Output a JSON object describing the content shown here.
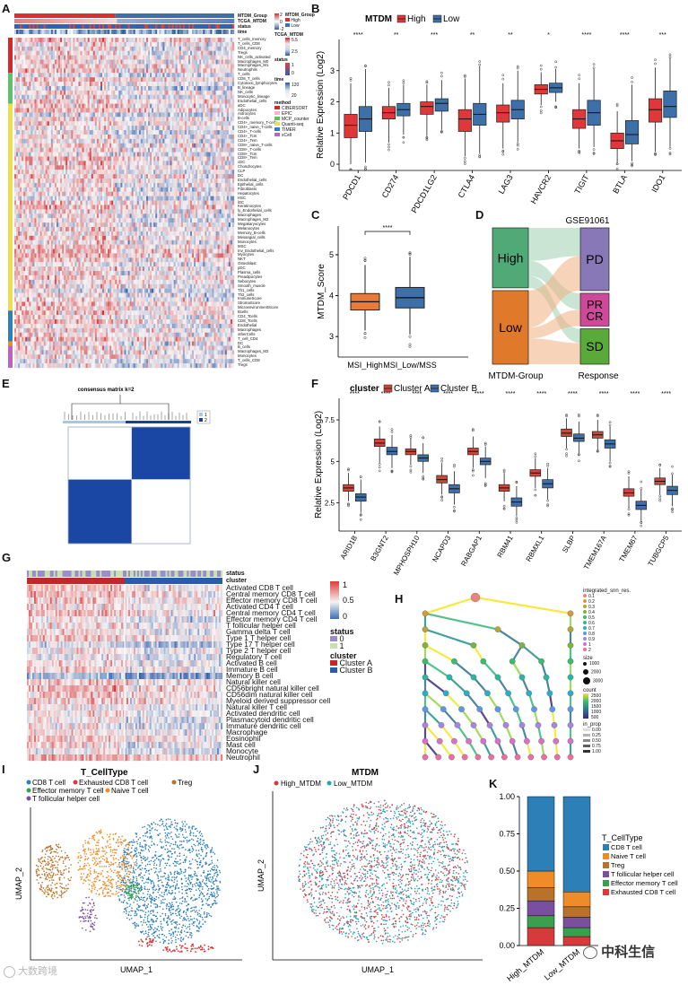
{
  "panels": {
    "a": "A",
    "b": "B",
    "c": "C",
    "d": "D",
    "e": "E",
    "f": "F",
    "g": "G",
    "h": "H",
    "i": "I",
    "j": "J",
    "k": "K"
  },
  "panelA": {
    "header_rows": [
      "MTDM_Group",
      "TCGA_MTDM",
      "status",
      "time"
    ],
    "cell_labels": [
      "T_cells_memory",
      "T_cells_CD8",
      "CD4_memory",
      "Tregs",
      "NK_cells_activated",
      "Macrophages_M0",
      "Macrophages_M1",
      "Neutrophils",
      "T_cells",
      "CD8_T_cells",
      "Cytotoxic_lymphocytes",
      "B_lineage",
      "NK_cells",
      "Monocytic_lineage",
      "Endothelial_cells",
      "aDC",
      "Adipocytes",
      "Astrocytes",
      "B-cells",
      "CD4+_memory_T-cells",
      "CD4+_naive_T-cells",
      "CD4+_T-cells",
      "CD4+_Tcm",
      "CD4+_Tem",
      "CD8+_naive_T-cells",
      "CD8+_T-cells",
      "CD8+_Tcm",
      "CD8+_Tem",
      "cDC",
      "Chondrocytes",
      "CLP",
      "DC",
      "Endothelial_cells",
      "Epithelial_cells",
      "Fibroblasts",
      "Hepatocytes",
      "HSC",
      "iDC",
      "Keratinocytes",
      "ly_Endothelial_cells",
      "Macrophages",
      "Macrophages_M2",
      "Megakaryocytes",
      "Melanocytes",
      "Memory_B-cells",
      "Mesangial_cells",
      "Monocytes",
      "MSC",
      "mv_Endothelial_cells",
      "Myocytes",
      "NKT",
      "Osteoblast",
      "pDC",
      "Plasma_cells",
      "Preadipocytes",
      "Sebocytes",
      "Smooth_muscle",
      "Th1_cells",
      "Th2_cells",
      "ImmuneScore",
      "StromaScore",
      "MicroenvironmentScore",
      "Bcells",
      "CD4_Tcells",
      "CD8_Tcells",
      "Endothelial",
      "Macrophages",
      "otherCells",
      "T_cell_CD4",
      "DC",
      "B_cells",
      "Macrophages_M2",
      "Monocytes",
      "T_cells_CD8",
      "Tregs"
    ],
    "legend": {
      "mtdm_group_title": "MTDM_Group",
      "high": "High",
      "low": "Low",
      "tcga_title": "TCGA_MTDM",
      "tcga_ticks": [
        "5.5",
        "2.5"
      ],
      "status_title": "status",
      "status_ticks": [
        "1",
        "0"
      ],
      "time_title": "time",
      "time_ticks": [
        "120",
        "20"
      ],
      "method_title": "method",
      "methods": [
        "CIBERSORT",
        "EPIC",
        "MCP_counter",
        "Quanti-seq",
        "TIMER",
        "xCell"
      ],
      "scale_ticks": [
        "2",
        "0",
        "-2"
      ]
    },
    "method_colors": [
      "#d9262a",
      "#f7b6c8",
      "#5fbf6a",
      "#e8e050",
      "#2f7fb8",
      "#c060c0"
    ]
  },
  "chart_data": [
    {
      "id": "B",
      "type": "box",
      "title": "MTDM",
      "legend": [
        "High",
        "Low"
      ],
      "colors": [
        "#e0383a",
        "#3d6fa8"
      ],
      "categories": [
        "PDCD1",
        "CD274",
        "PDCD1LG2",
        "CTLA4",
        "LAG3",
        "HAVCR2",
        "TIGIT",
        "BTLA",
        "IDO1"
      ],
      "significance": [
        "****",
        "**",
        "***",
        "**",
        "**",
        "*",
        "****",
        "****",
        "***"
      ],
      "ylabel": "Relative Expression (Log2)",
      "ylim": [
        -0.2,
        4.0
      ],
      "yticks": [
        0,
        1,
        2,
        3
      ],
      "series": [
        {
          "name": "High",
          "q1": [
            0.85,
            1.45,
            1.6,
            1.05,
            1.35,
            2.25,
            1.15,
            0.5,
            1.35
          ],
          "median": [
            1.25,
            1.65,
            1.85,
            1.45,
            1.65,
            2.4,
            1.45,
            0.75,
            1.75
          ],
          "q3": [
            1.6,
            1.85,
            2.0,
            1.75,
            1.9,
            2.55,
            1.75,
            1.0,
            2.1
          ],
          "wlo": [
            0.0,
            0.7,
            0.9,
            0.25,
            0.5,
            1.9,
            0.5,
            0.05,
            0.4
          ],
          "whi": [
            2.6,
            2.45,
            2.55,
            2.75,
            2.6,
            2.95,
            2.6,
            1.7,
            3.1
          ]
        },
        {
          "name": "Low",
          "q1": [
            1.05,
            1.55,
            1.7,
            1.25,
            1.45,
            2.3,
            1.25,
            0.65,
            1.5
          ],
          "median": [
            1.45,
            1.75,
            1.95,
            1.6,
            1.75,
            2.45,
            1.65,
            0.95,
            1.85
          ],
          "q3": [
            1.85,
            1.95,
            2.1,
            1.95,
            2.05,
            2.6,
            2.05,
            1.4,
            2.35
          ],
          "wlo": [
            0.05,
            0.95,
            1.1,
            0.35,
            0.7,
            2.0,
            0.55,
            0.1,
            0.55
          ],
          "whi": [
            3.05,
            2.55,
            2.7,
            3.15,
            3.0,
            3.05,
            3.05,
            2.55,
            3.4
          ]
        }
      ]
    },
    {
      "id": "C",
      "type": "box",
      "categories": [
        "MSI_High",
        "MSI_Low/MSS"
      ],
      "colors": [
        "#e87a3a",
        "#3d6fa8"
      ],
      "significance": "****",
      "ylabel": "MTDM_Score",
      "ylim": [
        2.5,
        5.7
      ],
      "yticks": [
        3,
        4,
        5
      ],
      "q1": [
        3.65,
        3.7
      ],
      "median": [
        3.85,
        3.95
      ],
      "q3": [
        4.05,
        4.2
      ],
      "wlo": [
        3.15,
        3.05
      ],
      "whi": [
        4.75,
        4.95
      ]
    },
    {
      "id": "F",
      "type": "box",
      "title": "cluster",
      "legend": [
        "Cluster A",
        "Cluster B"
      ],
      "colors": [
        "#d0453a",
        "#3d6fa8"
      ],
      "categories": [
        "ARID1B",
        "B3GNT2",
        "MPHOSPH10",
        "NCAPD3",
        "RABGAP1",
        "RBM41",
        "RBMXL1",
        "SLBP",
        "TMEM167A",
        "TMEM67",
        "TUBGCP5"
      ],
      "significance": [
        "****",
        "****",
        "****",
        "****",
        "****",
        "****",
        "****",
        "****",
        "****",
        "****",
        "****"
      ],
      "ylabel": "Relative Expression (Log2)",
      "ylim": [
        0.8,
        8.8
      ],
      "yticks": [
        2.5,
        5.0,
        7.5
      ],
      "series": [
        {
          "name": "Cluster A",
          "q1": [
            3.2,
            5.9,
            5.4,
            3.7,
            5.4,
            3.2,
            4.1,
            6.5,
            6.4,
            2.9,
            3.6
          ],
          "median": [
            3.4,
            6.1,
            5.6,
            3.9,
            5.6,
            3.4,
            4.3,
            6.7,
            6.6,
            3.1,
            3.8
          ],
          "q3": [
            3.6,
            6.35,
            5.75,
            4.15,
            5.8,
            3.6,
            4.5,
            6.95,
            6.8,
            3.35,
            4.0
          ],
          "wlo": [
            2.6,
            4.9,
            4.8,
            3.0,
            4.6,
            2.6,
            3.4,
            5.8,
            5.7,
            2.2,
            3.0
          ],
          "whi": [
            4.3,
            7.1,
            6.4,
            4.9,
            6.5,
            4.3,
            5.2,
            7.6,
            7.5,
            4.1,
            4.6
          ]
        },
        {
          "name": "Cluster B",
          "q1": [
            2.6,
            5.4,
            5.0,
            3.1,
            4.8,
            2.3,
            3.4,
            6.2,
            5.8,
            2.1,
            3.0
          ],
          "median": [
            2.85,
            5.6,
            5.2,
            3.35,
            5.0,
            2.55,
            3.65,
            6.4,
            6.05,
            2.35,
            3.25
          ],
          "q3": [
            3.05,
            5.85,
            5.4,
            3.6,
            5.2,
            2.8,
            3.9,
            6.65,
            6.3,
            2.6,
            3.5
          ],
          "wlo": [
            1.9,
            4.6,
            4.3,
            2.4,
            4.0,
            1.7,
            2.7,
            5.5,
            5.0,
            1.4,
            2.3
          ],
          "whi": [
            3.9,
            6.6,
            6.1,
            4.4,
            5.9,
            3.5,
            4.6,
            7.4,
            7.1,
            3.3,
            4.2
          ]
        }
      ]
    },
    {
      "id": "K",
      "type": "stacked_bar",
      "categories": [
        "High_MTDM",
        "Low_MTDM"
      ],
      "yticks": [
        "0.00",
        "0.25",
        "0.50",
        "0.75",
        "1.00"
      ],
      "legend_title": "T_CellType",
      "series": [
        {
          "name": "CD8 T cell",
          "color": "#2d7fb8",
          "values": [
            0.5,
            0.64
          ]
        },
        {
          "name": "Naive T cell",
          "color": "#f08c28",
          "values": [
            0.11,
            0.1
          ]
        },
        {
          "name": "Treg",
          "color": "#b9722a",
          "values": [
            0.09,
            0.07
          ]
        },
        {
          "name": "T follicular helper cell",
          "color": "#7a4fa0",
          "values": [
            0.1,
            0.07
          ]
        },
        {
          "name": "Effector memory T cell",
          "color": "#3aa050",
          "values": [
            0.08,
            0.06
          ]
        },
        {
          "name": "Exhausted CD8 T cell",
          "color": "#d63a3a",
          "values": [
            0.12,
            0.06
          ]
        }
      ]
    },
    {
      "id": "E",
      "type": "heatmap",
      "title": "consensus matrix k=2",
      "legend": [
        "1",
        "2"
      ],
      "colors": [
        "#a8c8e0",
        "#1a3f9c"
      ],
      "blocks": [
        [
          0,
          1
        ],
        [
          1,
          0
        ]
      ]
    }
  ],
  "panelD": {
    "title": "GSE91061",
    "left_nodes": [
      "High",
      "Low"
    ],
    "right_nodes": [
      "PD",
      "PR",
      "CR",
      "SD"
    ],
    "xlabel_left": "MTDM-Group",
    "xlabel_right": "Response",
    "left_colors": [
      "#4faa78",
      "#e07a2a"
    ],
    "right_colors": [
      "#8878b8",
      "#d0489a",
      "#5aaa3a"
    ]
  },
  "panelG": {
    "top_rows": [
      "status",
      "cluster"
    ],
    "cells": [
      "Activated CD8 T cell",
      "Central memory CD8 T cell",
      "Effector memory CD8 T cell",
      "Activated CD4 T cell",
      "Central memory CD4 T cell",
      "Effector memory CD4 T cell",
      "T follicular helper cell",
      "Gamma delta T cell",
      "Type 1 T helper cell",
      "Type 17 T helper cell",
      "Type 2 T helper cell",
      "Regulatory T cell",
      "Activated B cell",
      "Immature B cell",
      "Memory B cell",
      "Natural killer cell",
      "CD56bright natural killer cell",
      "CD56dim natural killer cell",
      "Myeloid derived suppressor cell",
      "Natural killer T cell",
      "Activated dendritic cell",
      "Plasmacytoid dendritic cell",
      "Immature dendritic cell",
      "Macrophage",
      "Eosinophil",
      "Mast cell",
      "Monocyte",
      "Neutrophil"
    ],
    "scale_ticks": [
      "1",
      "0.5",
      "0"
    ],
    "status_title": "status",
    "status_levels": [
      "0",
      "1"
    ],
    "cluster_title": "cluster",
    "cluster_levels": [
      "Cluster A",
      "Cluster B"
    ]
  },
  "panelH": {
    "res_title": "integrated_snn_res.",
    "res_levels": [
      "0.1",
      "0.2",
      "0.3",
      "0.4",
      "0.5",
      "0.6",
      "0.7",
      "0.8",
      "0.9",
      "1",
      "2"
    ],
    "size_title": "size",
    "size_levels": [
      "1000",
      "2000",
      "3000"
    ],
    "count_title": "count",
    "count_levels": [
      "2500",
      "2000",
      "1500",
      "1000",
      "500"
    ],
    "prop_title": "in_prop",
    "prop_levels": [
      "0.00",
      "0.25",
      "0.50",
      "0.75",
      "1.00"
    ]
  },
  "panelI": {
    "title": "T_CellType",
    "legend": [
      "CD8 T cell",
      "Exhausted CD8 T cell",
      "Treg",
      "Effector memory T cell",
      "Naive T cell",
      "T follicular helper cell"
    ],
    "colors": [
      "#2d7fb8",
      "#d63a3a",
      "#b9722a",
      "#3aa050",
      "#f08c28",
      "#7a4fa0"
    ],
    "xlabel": "UMAP_1",
    "ylabel": "UMAP_2"
  },
  "panelJ": {
    "title": "MTDM",
    "legend": [
      "High_MTDM",
      "Low_MTDM"
    ],
    "colors": [
      "#d63a3a",
      "#2aa0b8"
    ],
    "xlabel": "UMAP_1",
    "ylabel": "UMAP_2"
  },
  "watermarks": {
    "left": "大数跨境",
    "right": "中科生信"
  }
}
